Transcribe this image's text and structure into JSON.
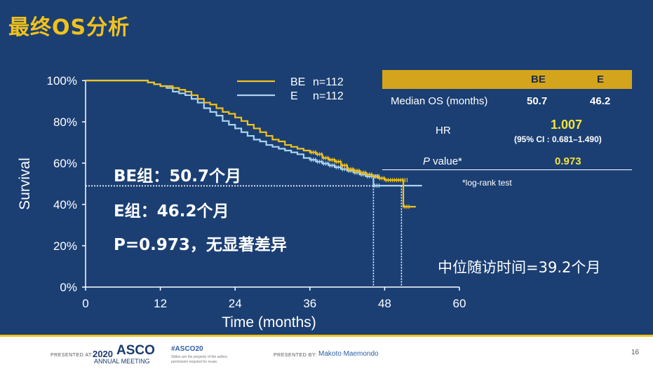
{
  "slide": {
    "title": "最终OS分析"
  },
  "chart_data": {
    "type": "line",
    "title": "",
    "xlabel": "Time (months)",
    "ylabel": "Survival",
    "xlim": [
      0,
      60
    ],
    "ylim": [
      0,
      100
    ],
    "xticks": [
      0,
      12,
      24,
      36,
      48,
      60
    ],
    "yticks": [
      0,
      20,
      40,
      60,
      80,
      100
    ],
    "x_tick_labels": [
      "0",
      "12",
      "24",
      "36",
      "48",
      "60"
    ],
    "y_tick_labels": [
      "0%",
      "20%",
      "40%",
      "60%",
      "80%",
      "100%"
    ],
    "grid": false,
    "legend_position": "top-center",
    "series": [
      {
        "name": "BE",
        "n_label": "n=112",
        "color": "#f2c21b",
        "points": [
          [
            0,
            100
          ],
          [
            9,
            100
          ],
          [
            10,
            99.1
          ],
          [
            11,
            98.2
          ],
          [
            12,
            97.3
          ],
          [
            14,
            96.4
          ],
          [
            15,
            95.5
          ],
          [
            16,
            94.6
          ],
          [
            17,
            92.9
          ],
          [
            18,
            91.1
          ],
          [
            19,
            89.3
          ],
          [
            20,
            88.4
          ],
          [
            21,
            86.6
          ],
          [
            22,
            84.8
          ],
          [
            23,
            83.9
          ],
          [
            24,
            82.1
          ],
          [
            25,
            80.4
          ],
          [
            26,
            78.6
          ],
          [
            27,
            76.8
          ],
          [
            28,
            75.0
          ],
          [
            29,
            73.2
          ],
          [
            30,
            71.4
          ],
          [
            31,
            70.5
          ],
          [
            32,
            68.8
          ],
          [
            33,
            67.9
          ],
          [
            34,
            67.0
          ],
          [
            35,
            66.1
          ],
          [
            36,
            65.2
          ],
          [
            37,
            64.3
          ],
          [
            38,
            62.5
          ],
          [
            39,
            61.6
          ],
          [
            40,
            60.7
          ],
          [
            41,
            58.9
          ],
          [
            42,
            57.1
          ],
          [
            43,
            56.3
          ],
          [
            44,
            55.4
          ],
          [
            45,
            54.5
          ],
          [
            46,
            53.6
          ],
          [
            47,
            52.7
          ],
          [
            48,
            51.8
          ],
          [
            49,
            51.8
          ],
          [
            50,
            51.8
          ],
          [
            50.7,
            51.8
          ],
          [
            51,
            38.9
          ],
          [
            53,
            38.9
          ]
        ]
      },
      {
        "name": "E",
        "n_label": "n=112",
        "color": "#a9d3ee",
        "points": [
          [
            0,
            100
          ],
          [
            9,
            100
          ],
          [
            10,
            99.1
          ],
          [
            11,
            98.2
          ],
          [
            12,
            97.3
          ],
          [
            13,
            96.4
          ],
          [
            14,
            94.6
          ],
          [
            15,
            93.8
          ],
          [
            16,
            92.9
          ],
          [
            17,
            91.1
          ],
          [
            18,
            89.3
          ],
          [
            19,
            86.6
          ],
          [
            20,
            84.8
          ],
          [
            21,
            83.0
          ],
          [
            22,
            80.4
          ],
          [
            23,
            78.6
          ],
          [
            24,
            76.8
          ],
          [
            25,
            75.0
          ],
          [
            26,
            73.2
          ],
          [
            27,
            71.4
          ],
          [
            28,
            70.5
          ],
          [
            29,
            68.8
          ],
          [
            30,
            67.9
          ],
          [
            31,
            67.0
          ],
          [
            32,
            66.1
          ],
          [
            33,
            65.2
          ],
          [
            34,
            64.3
          ],
          [
            35,
            62.5
          ],
          [
            36,
            61.6
          ],
          [
            37,
            60.7
          ],
          [
            38,
            59.8
          ],
          [
            39,
            58.9
          ],
          [
            40,
            58.0
          ],
          [
            41,
            57.1
          ],
          [
            42,
            56.3
          ],
          [
            43,
            55.4
          ],
          [
            44,
            54.5
          ],
          [
            45,
            53.6
          ],
          [
            46.2,
            53.6
          ],
          [
            46.2,
            49.1
          ],
          [
            54,
            49.1
          ]
        ]
      }
    ],
    "median_line_y": 49,
    "median_drops": [
      46.2,
      50.7
    ]
  },
  "stats_table": {
    "col_be": "BE",
    "col_e": "E",
    "median_label": "Median OS (months)",
    "median_be": "50.7",
    "median_e": "46.2",
    "hr_label": "HR",
    "hr_value": "1.007",
    "hr_ci": "(95% CI : 0.681–1.490)",
    "p_label_italic": "P",
    "p_label_rest": " value*",
    "p_value": "0.973",
    "footnote": "*log-rank test"
  },
  "overlay": {
    "be": "BE组：50.7个月",
    "e": "E组：46.2个月",
    "p": "P=0.973，无显著差异",
    "followup": "中位随访时间=39.2个月"
  },
  "footer": {
    "presented_at": "PRESENTED AT:",
    "asco_year": "2020",
    "asco_name": "ASCO",
    "asco_sub": "ANNUAL MEETING",
    "hashtag": "#ASCO20",
    "note_line1": "Slides are the property of the author,",
    "note_line2": "permission required for reuse.",
    "presented_by": "PRESENTED BY:",
    "presenter": "Makoto Maemondo",
    "page": "16"
  },
  "colors": {
    "background": "#1b3f73",
    "accent": "#f2c21b",
    "series_e": "#a9d3ee"
  }
}
